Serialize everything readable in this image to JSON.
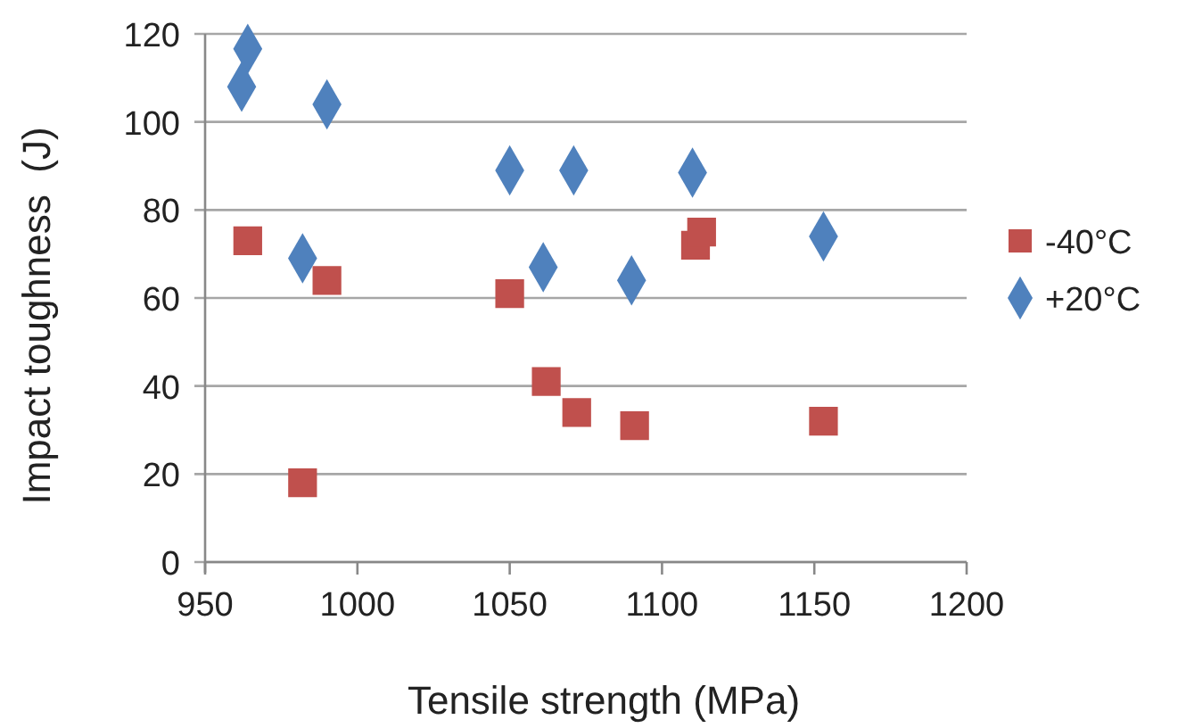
{
  "chart_data": {
    "type": "scatter",
    "xlabel": "Tensile strength (MPa)",
    "ylabel": "Impact toughness  (J)",
    "xlim": [
      950,
      1200
    ],
    "xticks": [
      950,
      1000,
      1050,
      1100,
      1150,
      1200
    ],
    "ylim": [
      0,
      120
    ],
    "yticks": [
      0,
      20,
      40,
      60,
      80,
      100,
      120
    ],
    "grid": "y",
    "legend": "right",
    "series": [
      {
        "name": "-40°C",
        "color": "#c0504d",
        "marker": "square",
        "x": [
          964,
          990,
          1050,
          1062,
          1072,
          1091,
          1153,
          982,
          1111,
          1113
        ],
        "values": [
          73,
          64,
          61,
          41,
          34,
          31,
          32,
          18,
          72,
          75
        ]
      },
      {
        "name": "+20°C",
        "color": "#4f81bd",
        "marker": "diamond",
        "x": [
          964,
          962,
          990,
          1050,
          1071,
          1110,
          982,
          1061,
          1090,
          1153
        ],
        "values": [
          116.6,
          108,
          104,
          89,
          89,
          88.5,
          69,
          67,
          64,
          74
        ]
      }
    ]
  }
}
